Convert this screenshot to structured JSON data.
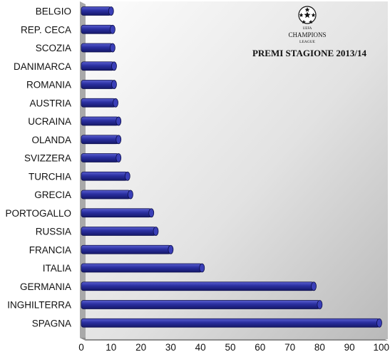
{
  "chart_data": {
    "type": "bar",
    "orientation": "horizontal",
    "title": "PREMI STAGIONE 2013/14",
    "xlabel": "",
    "ylabel": "",
    "xlim": [
      0,
      100
    ],
    "ticks": [
      "0",
      "10",
      "20",
      "30",
      "40",
      "50",
      "60",
      "70",
      "80",
      "90",
      "100"
    ],
    "grid": false,
    "categories": [
      "BELGIO",
      "REP. CECA",
      "SCOZIA",
      "DANIMARCA",
      "ROMANIA",
      "AUSTRIA",
      "UCRAINA",
      "OLANDA",
      "SVIZZERA",
      "TURCHIA",
      "GRECIA",
      "PORTOGALLO",
      "RUSSIA",
      "FRANCIA",
      "ITALIA",
      "GERMANIA",
      "INGHILTERRA",
      "SPAGNA"
    ],
    "values": [
      10,
      10.5,
      10.5,
      11,
      11,
      11.5,
      12.5,
      12.5,
      12.5,
      15.5,
      16.5,
      23.5,
      25,
      30,
      40.5,
      78,
      80,
      100
    ],
    "bar_color": "#2a2fa0",
    "background": "gradient-grey"
  },
  "logo": {
    "line1": "UEFA",
    "line2": "CHAMPIONS",
    "line3": "LEAGUE"
  }
}
